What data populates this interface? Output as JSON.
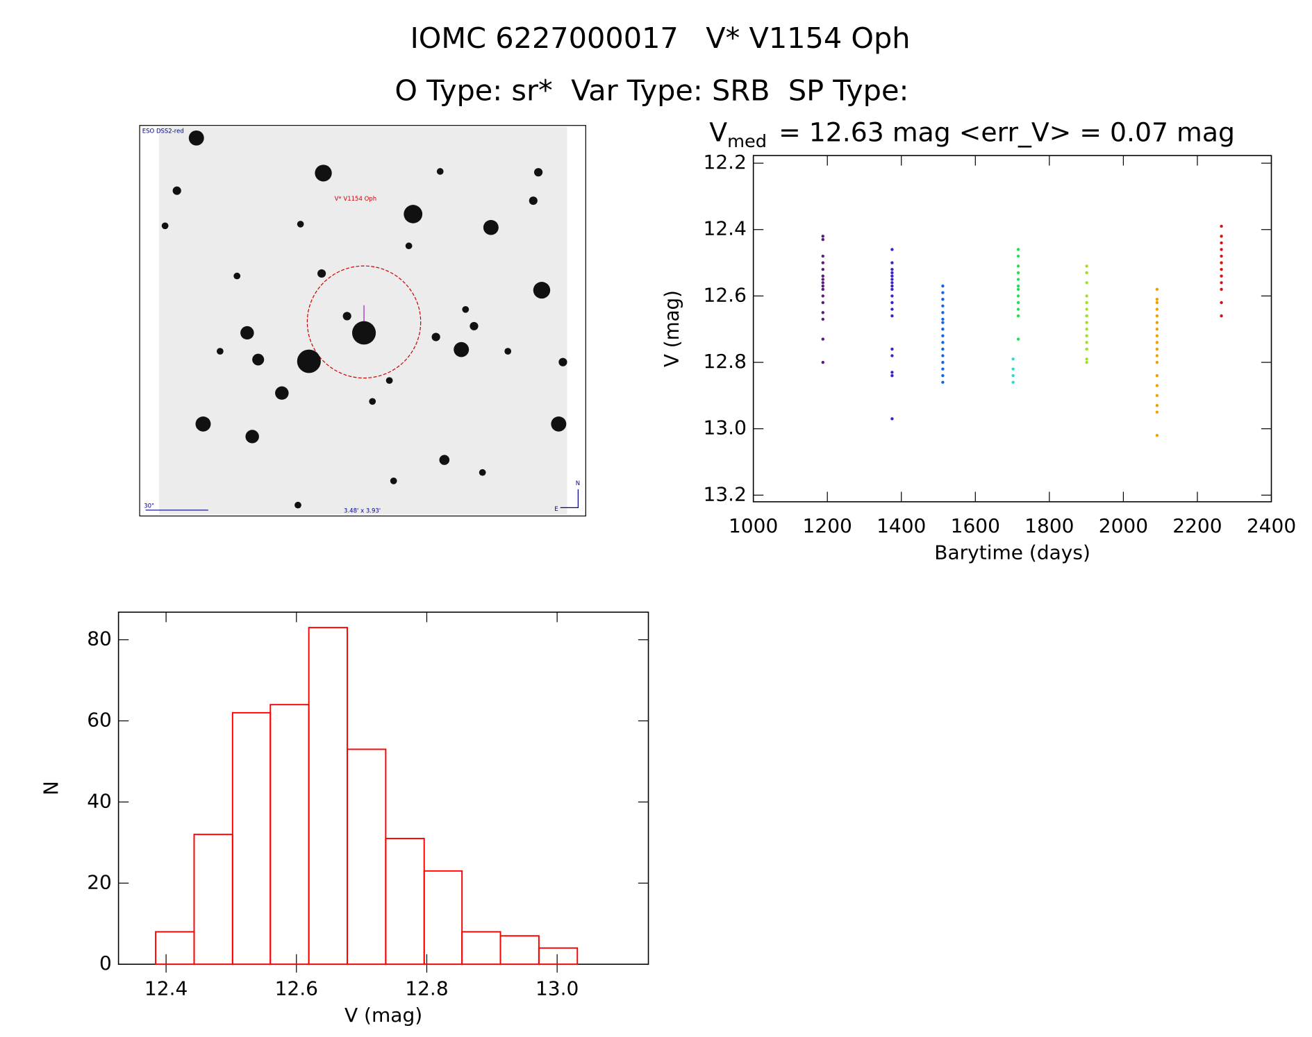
{
  "header": {
    "title": "IOMC 6227000017   V* V1154 Oph",
    "subtitle": "O Type: sr*  Var Type: SRB  SP Type:"
  },
  "finder": {
    "survey": "ESO DSS2-red",
    "target": "V* V1154 Oph",
    "scale": "30\"",
    "fov": "3.48' x 3.93'",
    "north": "N",
    "east": "E"
  },
  "chart_data": [
    {
      "type": "scatter",
      "title": [
        "V",
        "med",
        "= 12.63 mag <err_V> = 0.07 mag"
      ],
      "x_label": "Barytime (days)",
      "y_label": "V (mag)",
      "xlim": [
        1000,
        2400
      ],
      "xticks": [
        1000,
        1200,
        1400,
        1600,
        1800,
        2000,
        2200,
        2400
      ],
      "ylim": [
        13.22,
        12.177
      ],
      "yticks": [
        12.2,
        12.4,
        12.6,
        12.8,
        {
          "value": 13,
          "label": "13.0"
        },
        13.2
      ],
      "series": [
        {
          "color": "#5b1a80",
          "x": [
            1188,
            1188,
            1188,
            1188,
            1188,
            1188,
            1188,
            1188,
            1188,
            1188,
            1188,
            1188,
            1188,
            1188,
            1188,
            1188
          ],
          "values": [
            12.42,
            12.43,
            12.48,
            12.5,
            12.52,
            12.54,
            12.55,
            12.56,
            12.57,
            12.58,
            12.6,
            12.62,
            12.65,
            12.67,
            12.73,
            12.8
          ]
        },
        {
          "color": "#3a20d0",
          "x": [
            1375,
            1375,
            1375,
            1375,
            1375,
            1375,
            1375,
            1375,
            1375,
            1375,
            1375,
            1375,
            1375,
            1375,
            1375,
            1375,
            1375,
            1375
          ],
          "values": [
            12.46,
            12.5,
            12.52,
            12.53,
            12.54,
            12.55,
            12.56,
            12.57,
            12.58,
            12.6,
            12.62,
            12.64,
            12.66,
            12.76,
            12.78,
            12.83,
            12.84,
            12.97
          ]
        },
        {
          "color": "#1565e0",
          "x": [
            1512,
            1512,
            1512,
            1512,
            1512,
            1512,
            1512,
            1512,
            1512,
            1512,
            1512,
            1512,
            1512,
            1512,
            1512,
            1512
          ],
          "values": [
            12.57,
            12.59,
            12.61,
            12.63,
            12.65,
            12.67,
            12.68,
            12.7,
            12.72,
            12.74,
            12.76,
            12.78,
            12.8,
            12.82,
            12.84,
            12.86
          ]
        },
        {
          "color": "#22e050",
          "x": [
            1716,
            1716,
            1716,
            1716,
            1716,
            1716,
            1716,
            1716,
            1716,
            1716,
            1716,
            1716
          ],
          "values": [
            12.46,
            12.48,
            12.51,
            12.53,
            12.55,
            12.57,
            12.58,
            12.6,
            12.62,
            12.64,
            12.66,
            12.73
          ]
        },
        {
          "color": "#20e0d0",
          "x": [
            1702,
            1702,
            1702,
            1702
          ],
          "values": [
            12.79,
            12.82,
            12.84,
            12.86
          ]
        },
        {
          "color": "#a0e020",
          "x": [
            1901,
            1901,
            1901,
            1901,
            1901,
            1901,
            1901,
            1901,
            1901,
            1901,
            1901,
            1901,
            1901,
            1901
          ],
          "values": [
            12.51,
            12.53,
            12.56,
            12.6,
            12.62,
            12.64,
            12.66,
            12.68,
            12.7,
            12.72,
            12.74,
            12.76,
            12.79,
            12.8
          ]
        },
        {
          "color": "#f0a000",
          "x": [
            2091,
            2091,
            2091,
            2091,
            2091,
            2091,
            2091,
            2091,
            2091,
            2091,
            2091,
            2091,
            2091,
            2091,
            2091,
            2091,
            2091,
            2091
          ],
          "values": [
            12.58,
            12.61,
            12.62,
            12.64,
            12.66,
            12.68,
            12.7,
            12.72,
            12.74,
            12.76,
            12.78,
            12.8,
            12.84,
            12.87,
            12.9,
            12.93,
            12.95,
            13.02
          ]
        },
        {
          "color": "#e01010",
          "x": [
            2265,
            2265,
            2265,
            2265,
            2265,
            2265,
            2265,
            2265,
            2265,
            2265,
            2265,
            2265
          ],
          "values": [
            12.39,
            12.42,
            12.44,
            12.46,
            12.48,
            12.5,
            12.52,
            12.54,
            12.56,
            12.58,
            12.62,
            12.66
          ]
        }
      ]
    },
    {
      "type": "histogram",
      "x_label": "V (mag)",
      "y_label": "N",
      "color": "#ff0000",
      "bins": [
        12.384,
        12.443,
        12.502,
        12.56,
        12.619,
        12.678,
        12.737,
        12.796,
        12.854,
        12.913,
        12.972,
        13.031
      ],
      "values": [
        8,
        32,
        62,
        64,
        83,
        53,
        31,
        23,
        8,
        7,
        4
      ],
      "xlim": [
        12.327,
        13.14
      ],
      "xticks": [
        12.4,
        12.6,
        12.8,
        {
          "value": 13,
          "label": "13.0"
        }
      ],
      "ylim": [
        0,
        86.8
      ],
      "yticks": [
        0,
        20,
        40,
        60,
        80
      ]
    }
  ]
}
